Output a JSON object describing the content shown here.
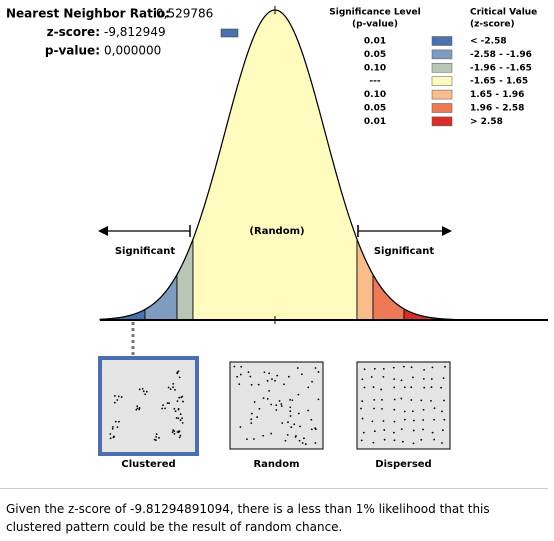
{
  "stats": [
    {
      "label": "Nearest Neighbor Ratio:",
      "value": "0,529786"
    },
    {
      "label": "z-score:",
      "value": "-9,812949"
    },
    {
      "label": "p-value:",
      "value": "0,000000"
    }
  ],
  "legend": {
    "p_header": [
      "Significance Level",
      "(p-value)"
    ],
    "z_header": [
      "Critical Value",
      "(z-score)"
    ],
    "rows": [
      {
        "p": "0.01",
        "z": "< -2.58",
        "color": "#4a72b0"
      },
      {
        "p": "0.05",
        "z": "-2.58 - -1.96",
        "color": "#7d9cc0"
      },
      {
        "p": "0.10",
        "z": "-1.96 - -1.65",
        "color": "#b9c6b6"
      },
      {
        "p": "---",
        "z": "-1.65 - 1.65",
        "color": "#fffbbf"
      },
      {
        "p": "0.10",
        "z": "1.65 - 1.96",
        "color": "#f9bd8c"
      },
      {
        "p": "0.05",
        "z": "1.96 - 2.58",
        "color": "#ec7a57"
      },
      {
        "p": "0.01",
        "z": "> 2.58",
        "color": "#d7302a"
      }
    ]
  },
  "curve": {
    "left": "Significant",
    "center": "(Random)",
    "right": "Significant"
  },
  "patterns": [
    "Clustered",
    "Random",
    "Dispersed"
  ],
  "footer": "Given the z-score of -9.81294891094, there is a less than 1% likelihood that this clustered pattern could be the result of random chance."
}
